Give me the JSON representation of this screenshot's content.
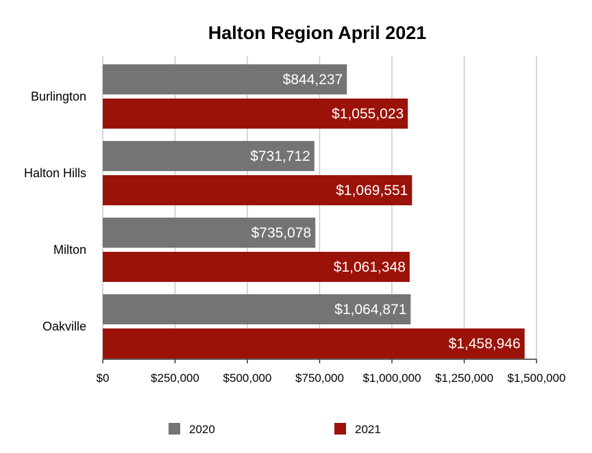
{
  "chart_data": {
    "type": "bar",
    "orientation": "horizontal",
    "title": "Halton Region April 2021",
    "xlabel": "",
    "ylabel": "",
    "categories": [
      "Burlington",
      "Halton Hills",
      "Milton",
      "Oakville"
    ],
    "series": [
      {
        "name": "2020",
        "color": "#737573",
        "values": [
          844237,
          731712,
          735078,
          1064871
        ],
        "labels": [
          "$844,237",
          "$731,712",
          "$735,078",
          "$1,064,871"
        ]
      },
      {
        "name": "2021",
        "color": "#9b1208",
        "values": [
          1055023,
          1069551,
          1061348,
          1458946
        ],
        "labels": [
          "$1,055,023",
          "$1,069,551",
          "$1,061,348",
          "$1,458,946"
        ]
      }
    ],
    "xlim": [
      0,
      1500000
    ],
    "x_ticks": [
      0,
      250000,
      500000,
      750000,
      1000000,
      1250000,
      1500000
    ],
    "x_tick_labels": [
      "$0",
      "$250,000",
      "$500,000",
      "$750,000",
      "$1,000,000",
      "$1,250,000",
      "$1,500,000"
    ],
    "grid": "vertical",
    "legend_position": "bottom"
  }
}
